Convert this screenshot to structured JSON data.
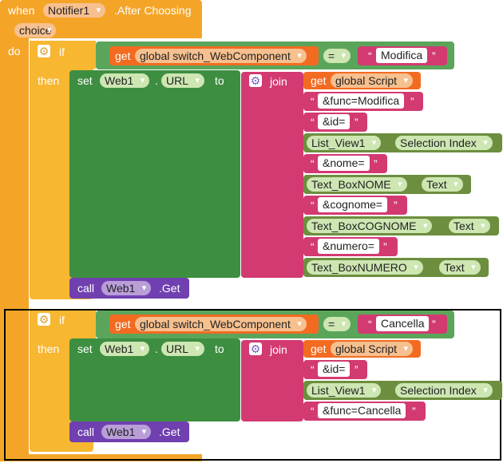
{
  "event": {
    "when": "when",
    "component": "Notifier1",
    "event_name": ".After Choosing",
    "param": "choice",
    "do": "do"
  },
  "if_blocks": [
    {
      "if_label": "if",
      "then_label": "then",
      "condition": {
        "get": "get",
        "var": "global switch_WebComponent",
        "op": "=",
        "value": "Modifica"
      },
      "set": {
        "set": "set",
        "component": "Web1",
        "dot": ".",
        "property": "URL",
        "to": "to"
      },
      "join": "join",
      "parts": [
        {
          "kind": "get",
          "label": "get",
          "var": "global Script"
        },
        {
          "kind": "text",
          "value": "&func=Modifica"
        },
        {
          "kind": "text",
          "value": "&id="
        },
        {
          "kind": "prop",
          "component": "List_View1",
          "property": "Selection Index"
        },
        {
          "kind": "text",
          "value": "&nome="
        },
        {
          "kind": "prop",
          "component": "Text_BoxNOME",
          "property": "Text"
        },
        {
          "kind": "text",
          "value": "&cognome="
        },
        {
          "kind": "prop",
          "component": "Text_BoxCOGNOME",
          "property": "Text"
        },
        {
          "kind": "text",
          "value": "&numero="
        },
        {
          "kind": "prop",
          "component": "Text_BoxNUMERO",
          "property": "Text"
        }
      ],
      "call": {
        "call": "call",
        "component": "Web1",
        "method": ".Get"
      }
    },
    {
      "if_label": "if",
      "then_label": "then",
      "condition": {
        "get": "get",
        "var": "global switch_WebComponent",
        "op": "=",
        "value": "Cancella"
      },
      "set": {
        "set": "set",
        "component": "Web1",
        "dot": ".",
        "property": "URL",
        "to": "to"
      },
      "join": "join",
      "parts": [
        {
          "kind": "get",
          "label": "get",
          "var": "global Script"
        },
        {
          "kind": "text",
          "value": "&id="
        },
        {
          "kind": "prop",
          "component": "List_View1",
          "property": "Selection Index"
        },
        {
          "kind": "text",
          "value": "&func=Cancella"
        }
      ],
      "call": {
        "call": "call",
        "component": "Web1",
        "method": ".Get"
      }
    }
  ],
  "colors": {
    "event": "#f4a528",
    "control": "#f7b731",
    "logic": "#5ba55b",
    "variable": "#f26b21",
    "text": "#d33a72",
    "component": "#6c8e3e",
    "set_get": "#3e8e41",
    "call": "#7040b0",
    "selection_box": "#000000"
  },
  "icons": {
    "mutator": "gear-icon",
    "dropdown": "chevron-down-icon",
    "quote": "quote-icon"
  }
}
